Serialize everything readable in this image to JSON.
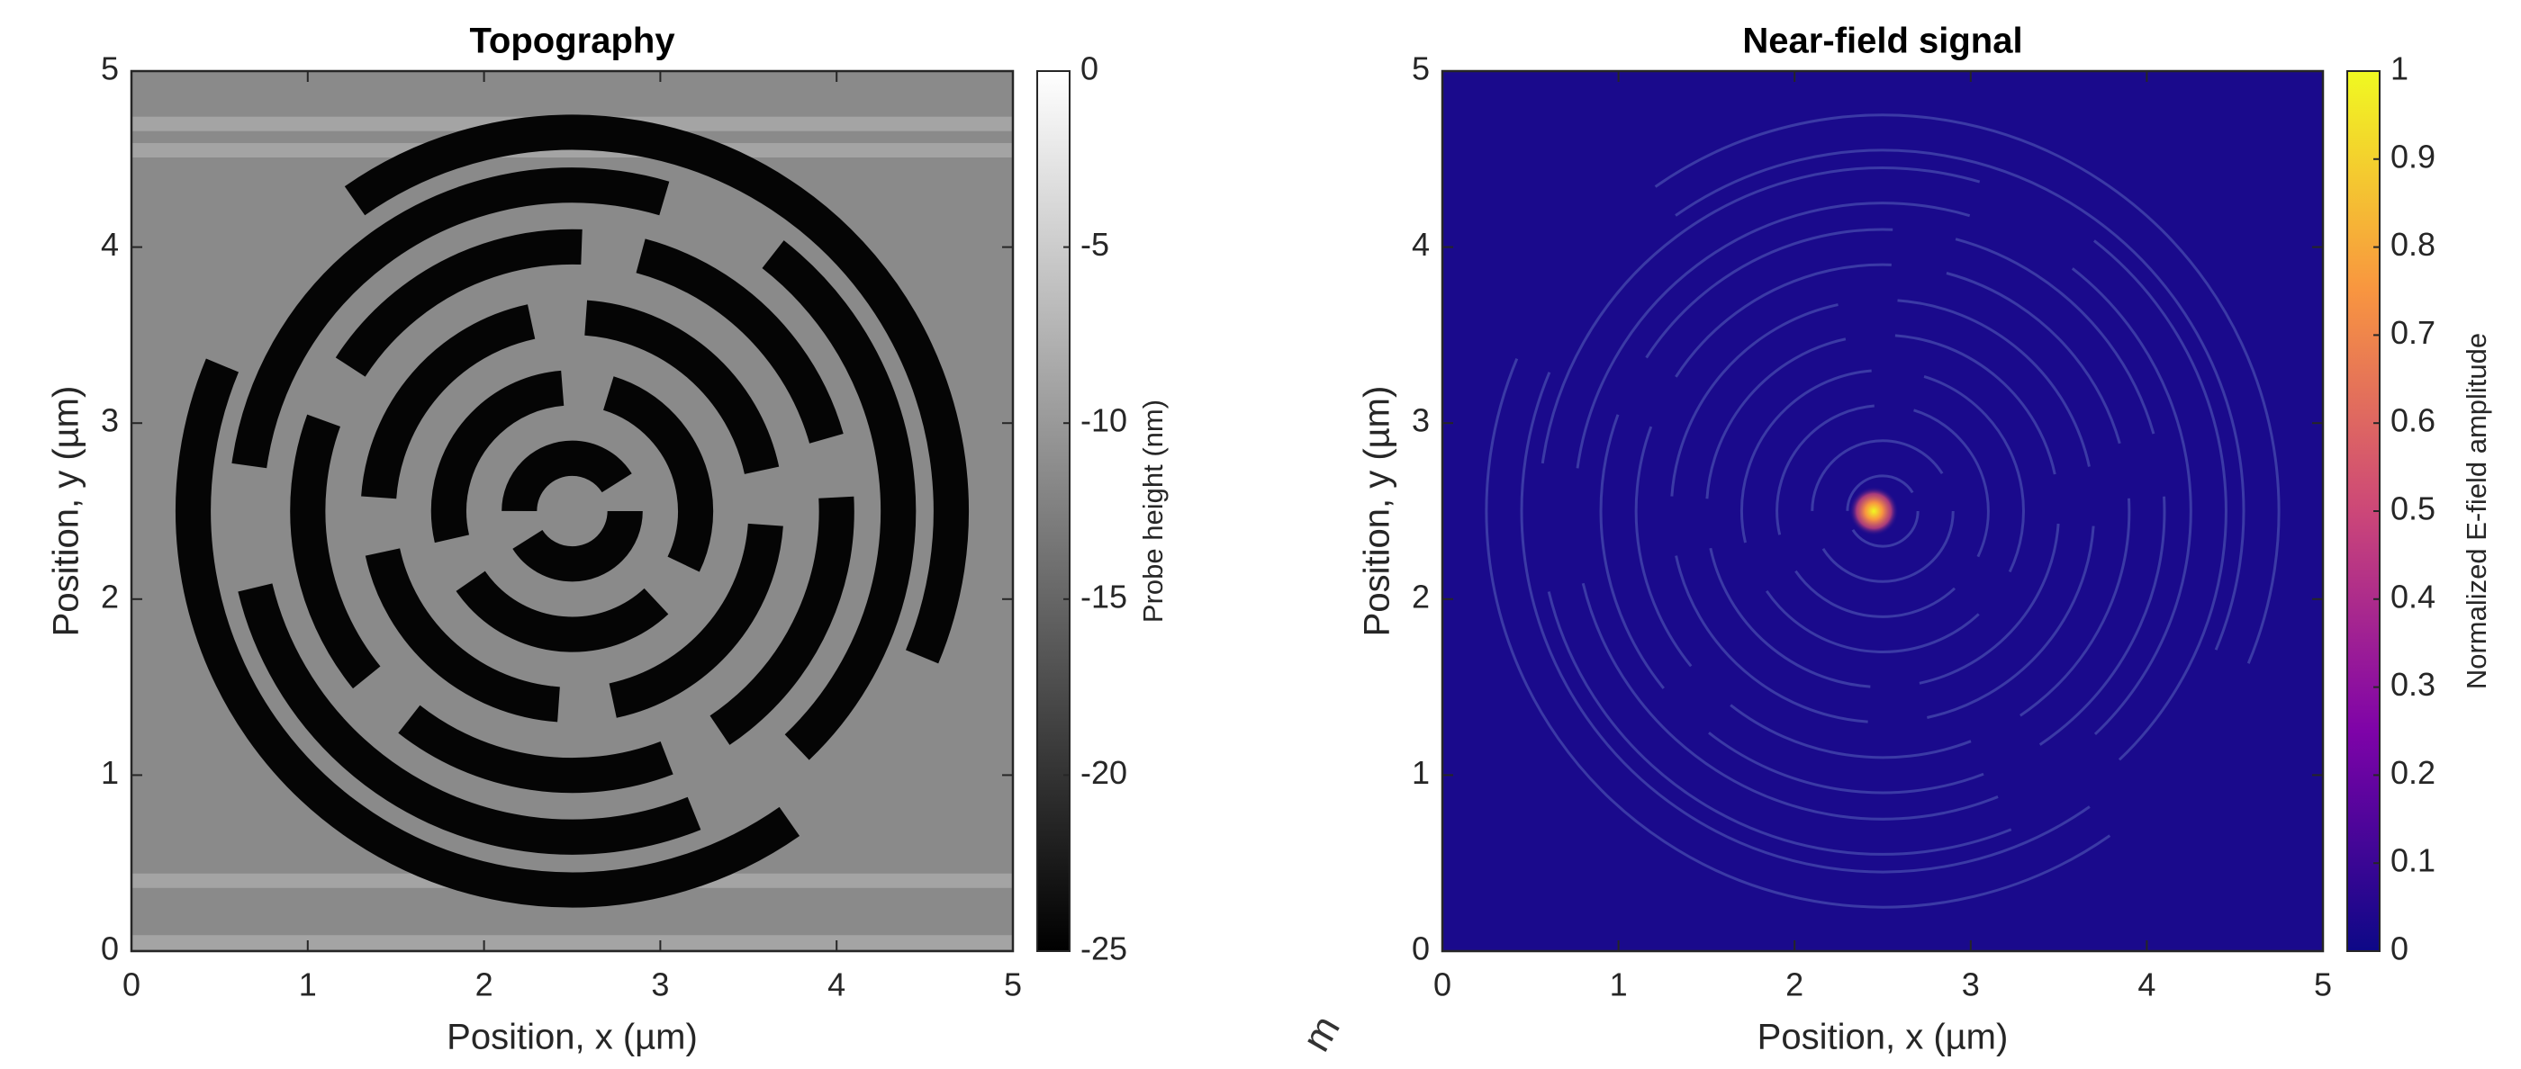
{
  "chart_data": [
    {
      "type": "heatmap",
      "title": "Topography",
      "xlabel": "Position, x (µm)",
      "ylabel": "Position, y (µm)",
      "xlim": [
        0,
        5
      ],
      "ylim": [
        0,
        5
      ],
      "xticks": [
        0,
        1,
        2,
        3,
        4,
        5
      ],
      "yticks": [
        0,
        1,
        2,
        3,
        4,
        5
      ],
      "colormap": "gray",
      "colorbar_label": "Probe height (nm)",
      "clim": [
        -25,
        0
      ],
      "cticks": [
        0,
        -5,
        -10,
        -15,
        -20,
        -25
      ]
    },
    {
      "type": "heatmap",
      "title": "Near-field signal",
      "xlabel": "Position, x (µm)",
      "ylabel": "Position, y (µm)",
      "xlim": [
        0,
        5
      ],
      "ylim": [
        0,
        5
      ],
      "xticks": [
        0,
        1,
        2,
        3,
        4,
        5
      ],
      "yticks": [
        0,
        1,
        2,
        3,
        4,
        5
      ],
      "colormap": "plasma",
      "colorbar_label": "Normalized E-field amplitude",
      "clim": [
        0,
        1
      ],
      "cticks": [
        0,
        0.1,
        0.2,
        0.3,
        0.4,
        0.5,
        0.6,
        0.7,
        0.8,
        0.9,
        1
      ]
    }
  ],
  "annotation": "m"
}
